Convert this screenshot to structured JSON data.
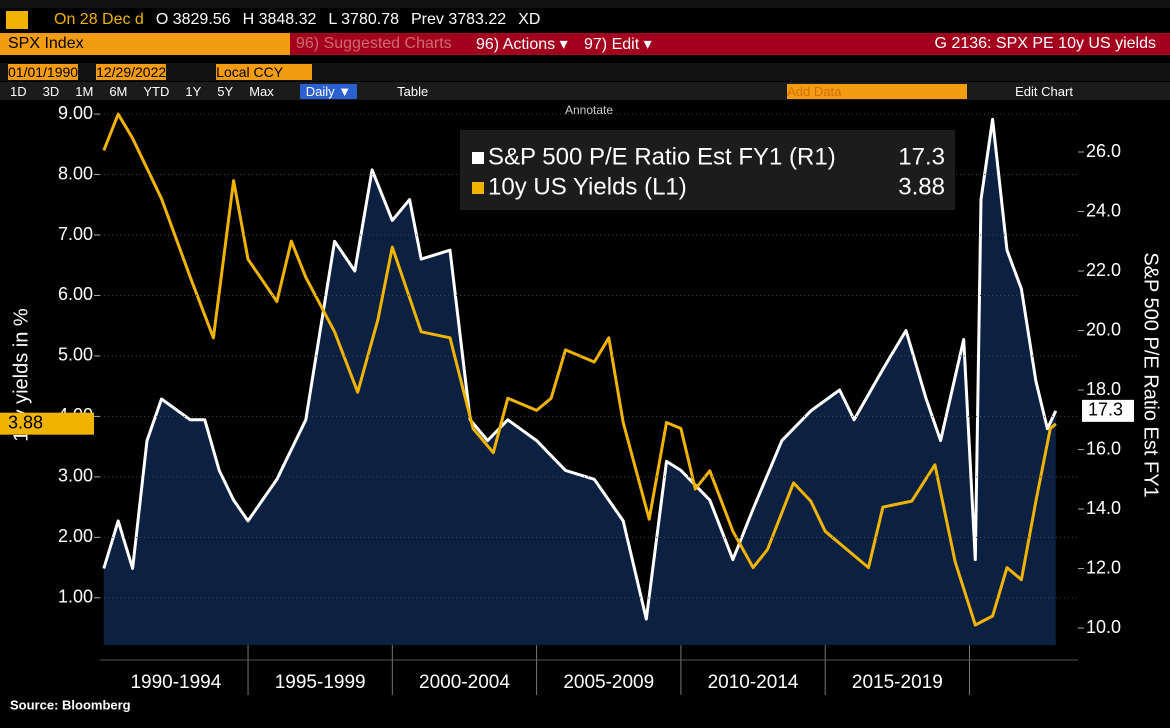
{
  "header": {
    "quote": [
      "On 28 Dec d",
      "O 3829.56",
      "H 3848.32",
      "L 3780.78",
      "Prev 3783.22",
      "XD"
    ],
    "security": "SPX Index",
    "suggested": "96) Suggested Charts",
    "actions": "96) Actions ▾",
    "edit": "97) Edit ▾",
    "chart_name": "G 2136: SPX PE 10y US yields",
    "start_date": "01/01/1990",
    "end_date": "12/29/2022",
    "currency": "Local CCY",
    "ranges": [
      "1D",
      "3D",
      "1M",
      "6M",
      "YTD",
      "1Y",
      "5Y",
      "Max"
    ],
    "frequency": "Daily ▼",
    "table": "Table",
    "add_data": "Add Data",
    "edit_chart": "Edit Chart",
    "annotate": "Annotate"
  },
  "chart_data": {
    "type": "line",
    "y_label": "10y yields in %",
    "y2_label": "S&P 500 P/E Ratio Est FY1",
    "source": "Source: Bloomberg",
    "xlim": [
      1989.87,
      2023.76
    ],
    "xticks": [
      1995,
      2000,
      2005,
      2010,
      2015,
      2020
    ],
    "periods": [
      {
        "label": "1990-1994",
        "value": 1992.5
      },
      {
        "label": "1995-1999",
        "value": 1997.5
      },
      {
        "label": "2000-2004",
        "value": 2002.5
      },
      {
        "label": "2005-2009",
        "value": 2007.5
      },
      {
        "label": "2010-2014",
        "value": 2012.5
      },
      {
        "label": "2015-2019",
        "value": 2017.5
      }
    ],
    "ylim": [
      0.22,
      9.15
    ],
    "yticks": [
      {
        "value": 1,
        "label": "1.00"
      },
      {
        "value": 2,
        "label": "2.00"
      },
      {
        "value": 3,
        "label": "3.00"
      },
      {
        "value": 4,
        "label": "4.00"
      },
      {
        "value": 5,
        "label": "5.00"
      },
      {
        "value": 6,
        "label": "6.00"
      },
      {
        "value": 7,
        "label": "7.00"
      },
      {
        "value": 8,
        "label": "8.00"
      },
      {
        "value": 9,
        "label": "9.00"
      }
    ],
    "y2lim": [
      9.43,
      27.58
    ],
    "y2ticks": [
      {
        "value": 10,
        "label": "10.0"
      },
      {
        "value": 12,
        "label": "12.0"
      },
      {
        "value": 14,
        "label": "14.0"
      },
      {
        "value": 16,
        "label": "16.0"
      },
      {
        "value": 18,
        "label": "18.0"
      },
      {
        "value": 20,
        "label": "20.0"
      },
      {
        "value": 22,
        "label": "22.0"
      },
      {
        "value": 24,
        "label": "24.0"
      },
      {
        "value": 26,
        "label": "26.0"
      }
    ],
    "grid": true,
    "series": [
      {
        "name": "S&P 500 P/E Ratio Est FY1 (R1)",
        "color": "#ffffff",
        "area_color": "#0c2141",
        "axis": "y2",
        "last_label": "17.3",
        "x": [
          1990,
          1990.5,
          1991,
          1991.5,
          1992,
          1993,
          1993.5,
          1994,
          1994.5,
          1995,
          1996,
          1997,
          1997.5,
          1998,
          1998.7,
          1999.3,
          2000,
          2000.6,
          2001,
          2002,
          2002.7,
          2003.3,
          2004,
          2005,
          2006,
          2007,
          2008,
          2008.8,
          2009.5,
          2010,
          2011,
          2011.8,
          2012.5,
          2013.5,
          2014.5,
          2015.5,
          2016,
          2017,
          2017.8,
          2018.5,
          2019,
          2019.8,
          2020.2,
          2020.4,
          2020.8,
          2021.3,
          2021.8,
          2022.3,
          2022.7,
          2022.99
        ],
        "values": [
          12.0,
          13.6,
          12.0,
          16.3,
          17.7,
          17.0,
          17.0,
          15.3,
          14.3,
          13.6,
          15.0,
          17.0,
          20.0,
          23.0,
          22.0,
          25.4,
          23.7,
          24.4,
          22.4,
          22.7,
          17.0,
          16.3,
          17.0,
          16.3,
          15.3,
          15.0,
          13.6,
          10.3,
          15.6,
          15.3,
          14.3,
          12.3,
          14.0,
          16.3,
          17.3,
          18.0,
          17.0,
          18.7,
          20.0,
          17.7,
          16.3,
          19.7,
          12.3,
          24.4,
          27.1,
          22.7,
          21.4,
          18.3,
          16.7,
          17.3
        ]
      },
      {
        "name": "10y US Yields (L1)",
        "color": "#f0b400",
        "axis": "y",
        "last_label": "3.88",
        "x": [
          1990,
          1990.5,
          1991,
          1992,
          1993,
          1993.8,
          1994.5,
          1995,
          1996,
          1996.5,
          1997,
          1998,
          1998.8,
          1999.5,
          2000,
          2001,
          2002,
          2002.8,
          2003.5,
          2004,
          2005,
          2005.5,
          2006,
          2007,
          2007.5,
          2008,
          2008.9,
          2009.5,
          2010,
          2010.5,
          2011,
          2011.8,
          2012.5,
          2013,
          2013.9,
          2014.5,
          2015,
          2016.5,
          2017,
          2018,
          2018.8,
          2019.5,
          2020.2,
          2020.8,
          2021.3,
          2021.8,
          2022.3,
          2022.8,
          2022.99
        ],
        "values": [
          8.4,
          9.0,
          8.6,
          7.6,
          6.3,
          5.3,
          7.9,
          6.6,
          5.9,
          6.9,
          6.3,
          5.4,
          4.4,
          5.6,
          6.8,
          5.4,
          5.3,
          3.8,
          3.4,
          4.3,
          4.1,
          4.3,
          5.1,
          4.9,
          5.3,
          3.9,
          2.3,
          3.9,
          3.8,
          2.8,
          3.1,
          2.1,
          1.5,
          1.8,
          2.9,
          2.6,
          2.1,
          1.5,
          2.5,
          2.6,
          3.2,
          1.6,
          0.55,
          0.7,
          1.5,
          1.3,
          2.6,
          3.8,
          3.88
        ]
      }
    ]
  }
}
